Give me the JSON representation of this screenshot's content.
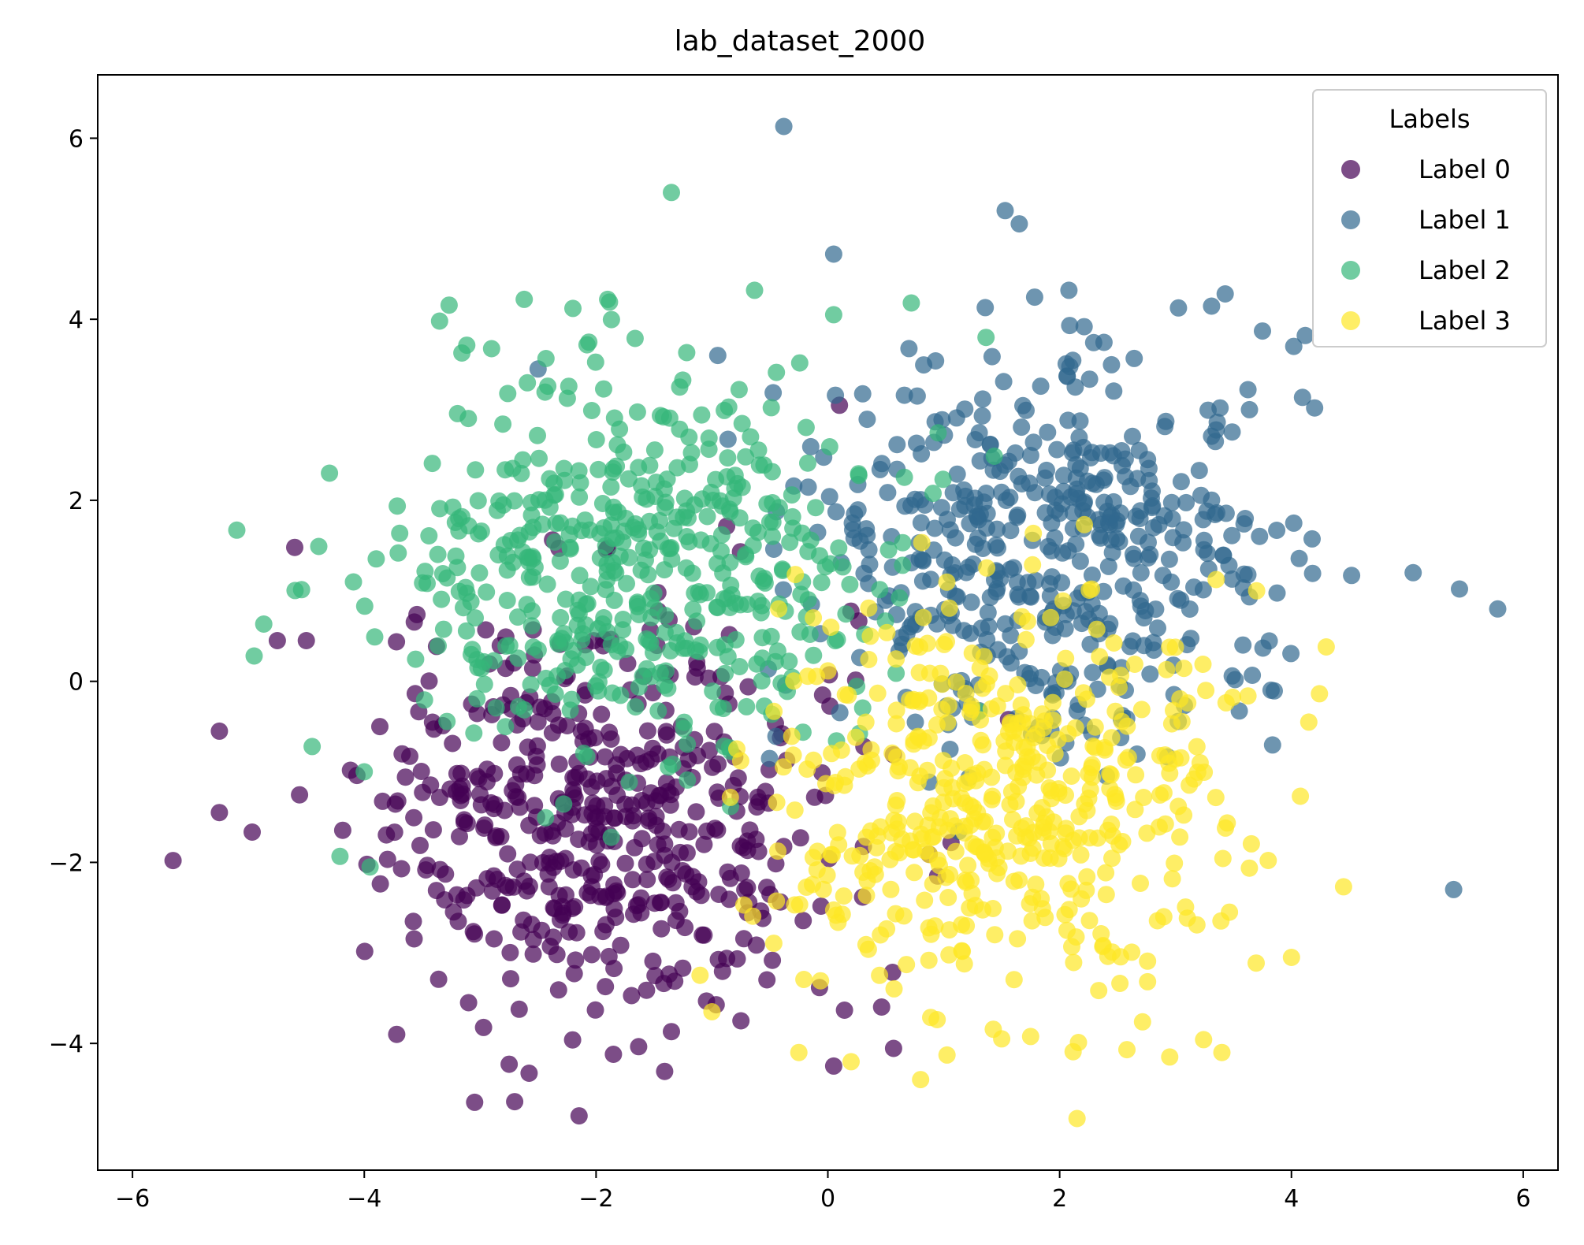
{
  "chart_data": {
    "type": "scatter",
    "title": "lab_dataset_2000",
    "xlabel": "",
    "ylabel": "",
    "xlim": [
      -6.3,
      6.3
    ],
    "ylim": [
      -5.4,
      6.7
    ],
    "x_ticks": [
      -6,
      -4,
      -2,
      0,
      2,
      4,
      6
    ],
    "y_ticks": [
      -4,
      -2,
      0,
      2,
      4,
      6
    ],
    "x_tick_labels": [
      "−6",
      "−4",
      "−2",
      "0",
      "2",
      "4",
      "6"
    ],
    "y_tick_labels": [
      "−4",
      "−2",
      "0",
      "2",
      "4",
      "6"
    ],
    "grid": false,
    "legend": {
      "title": "Labels",
      "placement": "top-right"
    },
    "point_count": 2000,
    "series": [
      {
        "name": "Label 0",
        "color": "#440154",
        "center": [
          -1.9,
          -1.5
        ],
        "spread": [
          1.0,
          1.1
        ],
        "outliers": [
          [
            -5.65,
            -1.98
          ],
          [
            -5.25,
            -1.45
          ],
          [
            -5.25,
            -0.55
          ],
          [
            -4.75,
            0.45
          ],
          [
            -4.5,
            0.45
          ],
          [
            -4.6,
            1.48
          ],
          [
            -3.72,
            -3.9
          ],
          [
            -2.75,
            -4.23
          ],
          [
            -1.85,
            -4.12
          ],
          [
            -1.35,
            -3.87
          ],
          [
            -0.75,
            -3.75
          ],
          [
            0.05,
            -4.25
          ],
          [
            0.1,
            3.05
          ],
          [
            -3.1,
            -3.55
          ]
        ]
      },
      {
        "name": "Label 1",
        "color": "#31688e",
        "center": [
          1.9,
          1.45
        ],
        "spread": [
          1.0,
          1.1
        ],
        "outliers": [
          [
            -0.38,
            6.13
          ],
          [
            1.53,
            5.2
          ],
          [
            0.05,
            4.72
          ],
          [
            2.08,
            4.32
          ],
          [
            5.78,
            0.8
          ],
          [
            5.4,
            -2.3
          ],
          [
            5.05,
            1.2
          ],
          [
            5.45,
            1.02
          ],
          [
            4.02,
            3.7
          ],
          [
            3.75,
            3.87
          ],
          [
            4.2,
            3.02
          ],
          [
            -0.95,
            3.6
          ],
          [
            -2.5,
            3.45
          ]
        ]
      },
      {
        "name": "Label 2",
        "color": "#35b779",
        "center": [
          -1.6,
          1.3
        ],
        "spread": [
          1.0,
          1.1
        ],
        "outliers": [
          [
            -1.35,
            5.4
          ],
          [
            -5.1,
            1.67
          ],
          [
            -4.95,
            0.28
          ],
          [
            -4.3,
            2.3
          ],
          [
            -4.45,
            -0.72
          ],
          [
            -4.0,
            -1.0
          ],
          [
            -3.95,
            -2.05
          ],
          [
            0.72,
            4.18
          ],
          [
            0.05,
            4.05
          ],
          [
            -1.9,
            4.22
          ],
          [
            -2.2,
            4.12
          ],
          [
            -3.35,
            3.98
          ]
        ]
      },
      {
        "name": "Label 3",
        "color": "#fde725",
        "center": [
          1.5,
          -1.3
        ],
        "spread": [
          1.0,
          1.1
        ],
        "outliers": [
          [
            2.15,
            -4.83
          ],
          [
            0.8,
            -4.4
          ],
          [
            4.45,
            -2.27
          ],
          [
            4.0,
            -3.05
          ],
          [
            4.15,
            -0.45
          ],
          [
            4.3,
            0.38
          ],
          [
            3.7,
            1.0
          ],
          [
            2.95,
            -4.15
          ],
          [
            3.4,
            -4.1
          ],
          [
            -0.25,
            -4.1
          ],
          [
            -1.0,
            -3.65
          ],
          [
            1.5,
            -3.95
          ]
        ]
      }
    ]
  }
}
